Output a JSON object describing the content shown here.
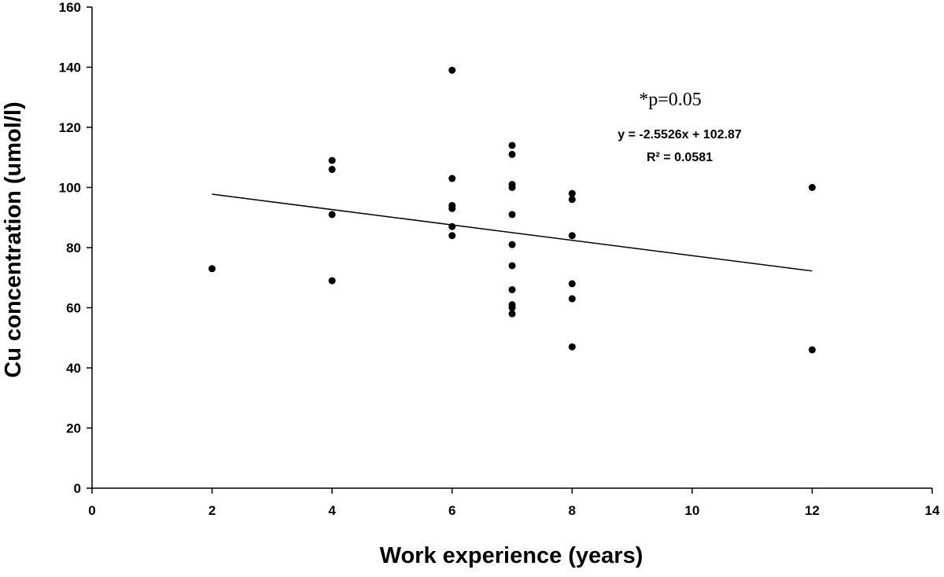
{
  "chart_data": {
    "type": "scatter",
    "xlabel": "Work experience (years)",
    "ylabel": "Cu concentration (umol/l)",
    "xlim": [
      0,
      14
    ],
    "ylim": [
      0,
      160
    ],
    "x_ticks": [
      0,
      2,
      4,
      6,
      8,
      10,
      12,
      14
    ],
    "y_ticks": [
      0,
      20,
      40,
      60,
      80,
      100,
      120,
      140,
      160
    ],
    "grid": false,
    "legend": "none",
    "marker_color": "#000000",
    "points": [
      {
        "x": 2,
        "y": 73
      },
      {
        "x": 4,
        "y": 109
      },
      {
        "x": 4,
        "y": 106
      },
      {
        "x": 4,
        "y": 91
      },
      {
        "x": 4,
        "y": 69
      },
      {
        "x": 6,
        "y": 139
      },
      {
        "x": 6,
        "y": 103
      },
      {
        "x": 6,
        "y": 94
      },
      {
        "x": 6,
        "y": 93
      },
      {
        "x": 6,
        "y": 87
      },
      {
        "x": 6,
        "y": 84
      },
      {
        "x": 7,
        "y": 114
      },
      {
        "x": 7,
        "y": 111
      },
      {
        "x": 7,
        "y": 101
      },
      {
        "x": 7,
        "y": 100
      },
      {
        "x": 7,
        "y": 91
      },
      {
        "x": 7,
        "y": 81
      },
      {
        "x": 7,
        "y": 74
      },
      {
        "x": 7,
        "y": 66
      },
      {
        "x": 7,
        "y": 61
      },
      {
        "x": 7,
        "y": 60
      },
      {
        "x": 7,
        "y": 58
      },
      {
        "x": 8,
        "y": 98
      },
      {
        "x": 8,
        "y": 96
      },
      {
        "x": 8,
        "y": 84
      },
      {
        "x": 8,
        "y": 68
      },
      {
        "x": 8,
        "y": 63
      },
      {
        "x": 8,
        "y": 47
      },
      {
        "x": 12,
        "y": 100
      },
      {
        "x": 12,
        "y": 46
      }
    ],
    "trendline": {
      "slope": -2.5526,
      "intercept": 102.87,
      "x_from": 2,
      "x_to": 12
    },
    "annotations": {
      "p_value": "*p=0.05",
      "equation": "y = -2.5526x + 102.87",
      "r_squared": "R² = 0.0581"
    }
  }
}
